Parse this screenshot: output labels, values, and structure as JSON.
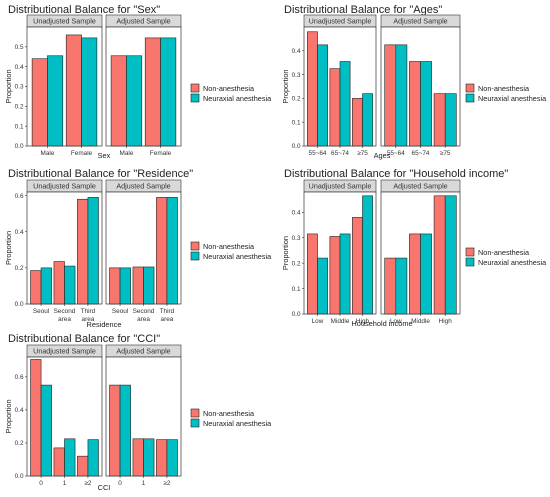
{
  "colors": {
    "non": "#F8766D",
    "neu": "#00BFC4",
    "strip": "#D9D9D9",
    "panel_border": "#333333"
  },
  "legend_labels": [
    "Non-anesthesia",
    "Neuraxial anesthesia"
  ],
  "facet_labels": [
    "Unadjusted Sample",
    "Adjusted Sample"
  ],
  "chart_data": [
    {
      "type": "bar",
      "title": "Distributional Balance for \"Sex\"",
      "xlabel": "Sex",
      "ylabel": "Proportion",
      "categories": [
        "Male",
        "Female"
      ],
      "ylim": [
        0,
        0.6
      ],
      "yticks": [
        0,
        0.1,
        0.2,
        0.3,
        0.4,
        0.5
      ],
      "ytick_labels": [
        "0.0",
        "0.1",
        "0.2",
        "0.3",
        "0.4",
        "0.5"
      ],
      "legend": "right",
      "panels": [
        {
          "facet": "Unadjusted Sample",
          "series": [
            {
              "name": "Non-anesthesia",
              "values": [
                0.44,
                0.56
              ]
            },
            {
              "name": "Neuraxial anesthesia",
              "values": [
                0.455,
                0.545
              ]
            }
          ]
        },
        {
          "facet": "Adjusted Sample",
          "series": [
            {
              "name": "Non-anesthesia",
              "values": [
                0.455,
                0.545
              ]
            },
            {
              "name": "Neuraxial anesthesia",
              "values": [
                0.455,
                0.545
              ]
            }
          ]
        }
      ]
    },
    {
      "type": "bar",
      "title": "Distributional Balance for \"Ages\"",
      "xlabel": "Ages",
      "ylabel": "Proportion",
      "categories": [
        "55~64",
        "65~74",
        "≥75"
      ],
      "ylim": [
        0,
        0.5
      ],
      "yticks": [
        0,
        0.1,
        0.2,
        0.3,
        0.4
      ],
      "ytick_labels": [
        "0.0",
        "0.1",
        "0.2",
        "0.3",
        "0.4"
      ],
      "legend": "right",
      "panels": [
        {
          "facet": "Unadjusted Sample",
          "series": [
            {
              "name": "Non-anesthesia",
              "values": [
                0.48,
                0.325,
                0.2
              ]
            },
            {
              "name": "Neuraxial anesthesia",
              "values": [
                0.425,
                0.355,
                0.22
              ]
            }
          ]
        },
        {
          "facet": "Adjusted Sample",
          "series": [
            {
              "name": "Non-anesthesia",
              "values": [
                0.425,
                0.355,
                0.22
              ]
            },
            {
              "name": "Neuraxial anesthesia",
              "values": [
                0.425,
                0.355,
                0.22
              ]
            }
          ]
        }
      ]
    },
    {
      "type": "bar",
      "title": "Distributional Balance for \"Residence\"",
      "xlabel": "Residence",
      "ylabel": "Proportion",
      "categories": [
        "Seoul",
        "Second\narea",
        "Third\narea"
      ],
      "ylim": [
        0,
        0.62
      ],
      "yticks": [
        0,
        0.2,
        0.4,
        0.6
      ],
      "ytick_labels": [
        "0.0",
        "0.2",
        "0.4",
        "0.6"
      ],
      "legend": "right",
      "panels": [
        {
          "facet": "Unadjusted Sample",
          "series": [
            {
              "name": "Non-anesthesia",
              "values": [
                0.185,
                0.235,
                0.58
              ]
            },
            {
              "name": "Neuraxial anesthesia",
              "values": [
                0.2,
                0.21,
                0.59
              ]
            }
          ]
        },
        {
          "facet": "Adjusted Sample",
          "series": [
            {
              "name": "Non-anesthesia",
              "values": [
                0.2,
                0.205,
                0.59
              ]
            },
            {
              "name": "Neuraxial anesthesia",
              "values": [
                0.2,
                0.205,
                0.59
              ]
            }
          ]
        }
      ]
    },
    {
      "type": "bar",
      "title": "Distributional Balance for \"Household income\"",
      "xlabel": "Household income",
      "ylabel": "Proportion",
      "categories": [
        "Low",
        "Middle",
        "High"
      ],
      "ylim": [
        0,
        0.48
      ],
      "yticks": [
        0,
        0.1,
        0.2,
        0.3,
        0.4
      ],
      "ytick_labels": [
        "0.0",
        "0.1",
        "0.2",
        "0.3",
        "0.4"
      ],
      "legend": "right",
      "panels": [
        {
          "facet": "Unadjusted Sample",
          "series": [
            {
              "name": "Non-anesthesia",
              "values": [
                0.315,
                0.305,
                0.38
              ]
            },
            {
              "name": "Neuraxial anesthesia",
              "values": [
                0.22,
                0.315,
                0.465
              ]
            }
          ]
        },
        {
          "facet": "Adjusted Sample",
          "series": [
            {
              "name": "Non-anesthesia",
              "values": [
                0.22,
                0.315,
                0.465
              ]
            },
            {
              "name": "Neuraxial anesthesia",
              "values": [
                0.22,
                0.315,
                0.465
              ]
            }
          ]
        }
      ]
    },
    {
      "type": "bar",
      "title": "Distributional Balance for \"CCI\"",
      "xlabel": "CCI",
      "ylabel": "Proportion",
      "categories": [
        "0",
        "1",
        "≥2"
      ],
      "ylim": [
        0,
        0.72
      ],
      "yticks": [
        0,
        0.2,
        0.4,
        0.6
      ],
      "ytick_labels": [
        "0.0",
        "0.2",
        "0.4",
        "0.6"
      ],
      "legend": "right",
      "panels": [
        {
          "facet": "Unadjusted Sample",
          "series": [
            {
              "name": "Non-anesthesia",
              "values": [
                0.705,
                0.17,
                0.12
              ]
            },
            {
              "name": "Neuraxial anesthesia",
              "values": [
                0.55,
                0.225,
                0.22
              ]
            }
          ]
        },
        {
          "facet": "Adjusted Sample",
          "series": [
            {
              "name": "Non-anesthesia",
              "values": [
                0.55,
                0.225,
                0.22
              ]
            },
            {
              "name": "Neuraxial anesthesia",
              "values": [
                0.55,
                0.225,
                0.22
              ]
            }
          ]
        }
      ]
    }
  ]
}
